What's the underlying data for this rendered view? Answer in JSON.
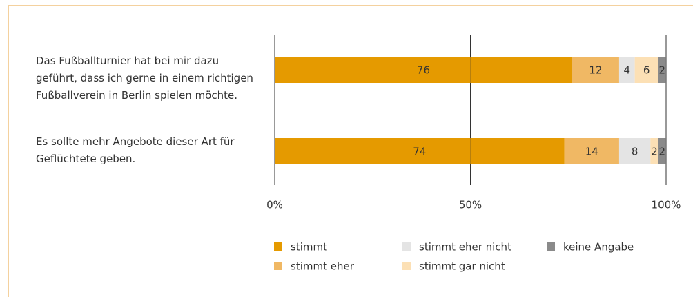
{
  "chart_data": {
    "type": "stacked-barh",
    "categories": [
      "Das Fußballturnier hat bei mir dazu geführt, dass ich gerne in einem richtigen Fußballverein in Berlin spielen möchte.",
      "Es sollte mehr Angebote dieser Art für Geflüchtete geben."
    ],
    "series": [
      {
        "name": "stimmt",
        "color": "#e59a00",
        "values": [
          76,
          74
        ]
      },
      {
        "name": "stimmt eher",
        "color": "#f0b864",
        "values": [
          12,
          14
        ]
      },
      {
        "name": "stimmt eher nicht",
        "color": "#e4e4e4",
        "values": [
          4,
          8
        ]
      },
      {
        "name": "stimmt gar nicht",
        "color": "#fce0b5",
        "values": [
          6,
          2
        ]
      },
      {
        "name": "keine Angabe",
        "color": "#8a8a8a",
        "values": [
          2,
          2
        ]
      }
    ],
    "xlim": [
      0,
      100
    ],
    "xticks": [
      {
        "value": 0,
        "label": "0%"
      },
      {
        "value": 50,
        "label": "50%"
      },
      {
        "value": 100,
        "label": "100%"
      }
    ],
    "grid": true
  }
}
